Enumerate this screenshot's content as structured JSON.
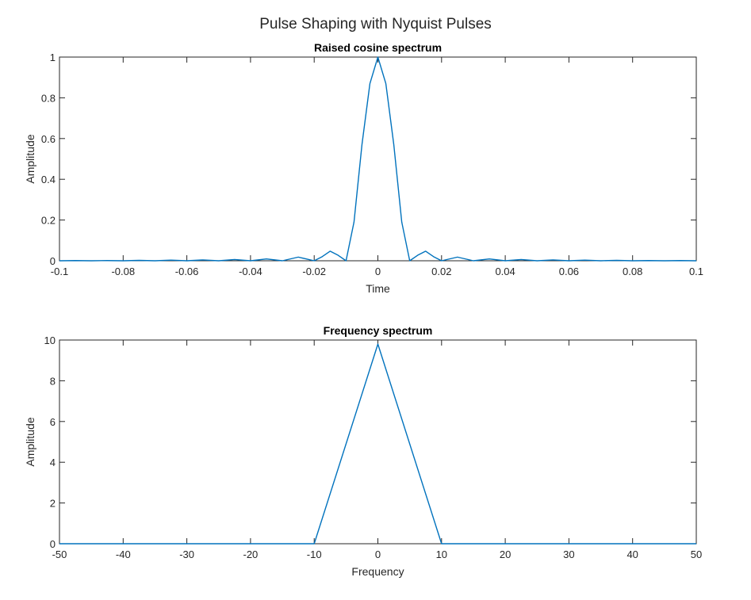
{
  "figure_title": "Pulse Shaping with Nyquist Pulses",
  "colors": {
    "line": "#0072BD",
    "axis": "#262626",
    "background": "#ffffff"
  },
  "chart_data": [
    {
      "type": "line",
      "title": "Raised cosine spectrum",
      "xlabel": "Time",
      "ylabel": "Amplitude",
      "xlim": [
        -0.1,
        0.1
      ],
      "ylim": [
        0,
        1
      ],
      "xticks": [
        -0.1,
        -0.08,
        -0.06,
        -0.04,
        -0.02,
        0,
        0.02,
        0.04,
        0.06,
        0.08,
        0.1
      ],
      "xtick_labels": [
        "-0.1",
        "-0.08",
        "-0.06",
        "-0.04",
        "-0.02",
        "0",
        "0.02",
        "0.04",
        "0.06",
        "0.08",
        "0.1"
      ],
      "yticks": [
        0,
        0.2,
        0.4,
        0.6,
        0.8,
        1
      ],
      "ytick_labels": [
        "0",
        "0.2",
        "0.4",
        "0.6",
        "0.8",
        "1"
      ],
      "grid": false,
      "series": [
        {
          "x": [
            -0.1,
            -0.095,
            -0.09,
            -0.085,
            -0.08,
            -0.075,
            -0.07,
            -0.065,
            -0.06,
            -0.055,
            -0.05,
            -0.045,
            -0.04,
            -0.035,
            -0.03,
            -0.025,
            -0.02,
            -0.0175,
            -0.015,
            -0.0125,
            -0.01,
            -0.0075,
            -0.005,
            -0.0025,
            0,
            0.0025,
            0.005,
            0.0075,
            0.01,
            0.0125,
            0.015,
            0.0175,
            0.02,
            0.025,
            0.03,
            0.035,
            0.04,
            0.045,
            0.05,
            0.055,
            0.06,
            0.065,
            0.07,
            0.075,
            0.08,
            0.085,
            0.09,
            0.095,
            0.1
          ],
          "y": [
            0,
            0.001,
            0,
            0.001,
            0,
            0.002,
            0,
            0.003,
            0,
            0.004,
            0,
            0.006,
            0,
            0.009,
            0,
            0.018,
            0,
            0.02,
            0.047,
            0.027,
            0,
            0.19,
            0.57,
            0.87,
            1,
            0.87,
            0.57,
            0.19,
            0,
            0.027,
            0.047,
            0.02,
            0,
            0.018,
            0,
            0.009,
            0,
            0.006,
            0,
            0.004,
            0,
            0.003,
            0,
            0.002,
            0,
            0.001,
            0,
            0.001,
            0
          ]
        }
      ]
    },
    {
      "type": "line",
      "title": "Frequency spectrum",
      "xlabel": "Frequency",
      "ylabel": "Amplitude",
      "xlim": [
        -50,
        50
      ],
      "ylim": [
        0,
        10
      ],
      "xticks": [
        -50,
        -40,
        -30,
        -20,
        -10,
        0,
        10,
        20,
        30,
        40,
        50
      ],
      "xtick_labels": [
        "-50",
        "-40",
        "-30",
        "-20",
        "-10",
        "0",
        "10",
        "20",
        "30",
        "40",
        "50"
      ],
      "yticks": [
        0,
        2,
        4,
        6,
        8,
        10
      ],
      "ytick_labels": [
        "0",
        "2",
        "4",
        "6",
        "8",
        "10"
      ],
      "grid": false,
      "series": [
        {
          "x": [
            -50,
            -10,
            0,
            10,
            50
          ],
          "y": [
            0,
            0,
            9.8,
            0,
            0
          ]
        }
      ]
    }
  ]
}
